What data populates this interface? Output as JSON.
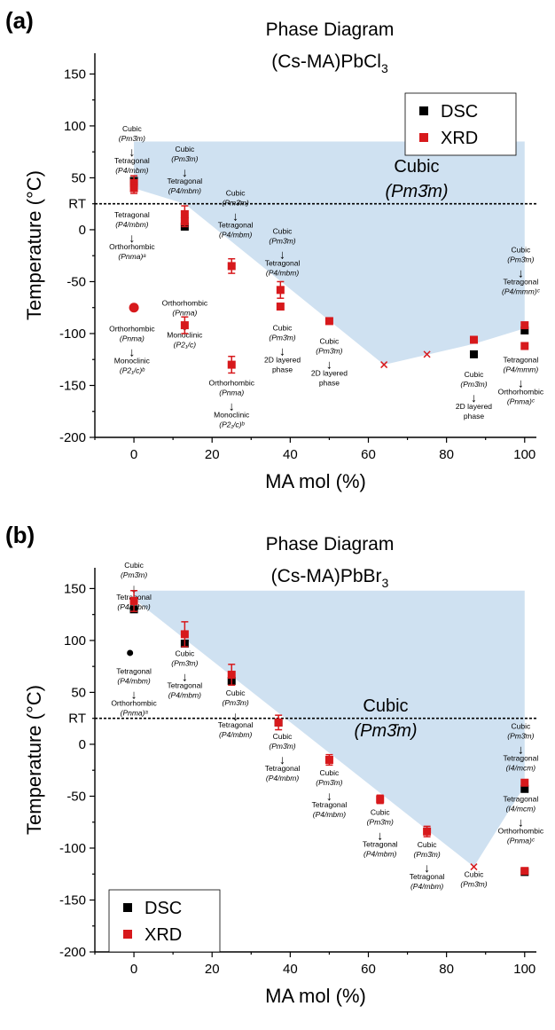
{
  "chart_data": [
    {
      "type": "scatter",
      "panel_label": "(a)",
      "title_line1": "Phase Diagram",
      "title_line2": "(Cs-MA)PbCl",
      "title_sub": "3",
      "xlabel": "MA mol (%)",
      "ylabel": "Temperature (°C)",
      "xlim": [
        -10,
        103
      ],
      "ylim": [
        -200,
        170
      ],
      "xticks": [
        0,
        20,
        40,
        60,
        80,
        100
      ],
      "yticks": [
        -200,
        -150,
        -100,
        -50,
        0,
        50,
        100,
        150
      ],
      "rt_label": "RT",
      "rt_value": 25,
      "region_label": "Cubic",
      "region_label2": "(Pm3̄m)",
      "region_color": "#cfe1f1",
      "region": [
        [
          0,
          85
        ],
        [
          100,
          85
        ],
        [
          100,
          -95
        ],
        [
          87,
          -110
        ],
        [
          64,
          -130
        ],
        [
          13,
          25
        ],
        [
          0,
          40
        ]
      ],
      "legend": [
        {
          "label": "DSC",
          "color": "#000000",
          "marker": "square"
        },
        {
          "label": "XRD",
          "color": "#d7191c",
          "marker": "square"
        }
      ],
      "legend_position": "top-right",
      "series": [
        {
          "name": "DSC",
          "color": "#000000",
          "points": [
            {
              "x": 0,
              "y": 47
            },
            {
              "x": 13,
              "y": 3
            },
            {
              "x": 87,
              "y": -120
            },
            {
              "x": 100,
              "y": -97
            }
          ]
        },
        {
          "name": "XRD",
          "color": "#d7191c",
          "points": [
            {
              "x": 0,
              "y": 45,
              "err": 7
            },
            {
              "x": 0,
              "y": 40,
              "err": 5
            },
            {
              "x": 13,
              "y": 15,
              "err": 8
            },
            {
              "x": 13,
              "y": 8,
              "err": 5
            },
            {
              "x": 13,
              "y": -92,
              "err": 8
            },
            {
              "x": 25,
              "y": -35,
              "err": 7
            },
            {
              "x": 25,
              "y": -130,
              "err": 8
            },
            {
              "x": 37.5,
              "y": -58,
              "err": 8
            },
            {
              "x": 37.5,
              "y": -74
            },
            {
              "x": 50,
              "y": -88
            },
            {
              "x": 87,
              "y": -106
            },
            {
              "x": 100,
              "y": -92
            },
            {
              "x": 100,
              "y": -112
            }
          ]
        }
      ],
      "extra_markers": [
        {
          "kind": "circle",
          "x": 0,
          "y": -75,
          "color": "#d7191c"
        },
        {
          "kind": "cross",
          "x": 64,
          "y": -130,
          "color": "#d7191c"
        },
        {
          "kind": "cross",
          "x": 75,
          "y": -120,
          "color": "#d7191c"
        }
      ],
      "annotations": [
        {
          "x": -0.5,
          "y": 95,
          "lines": [
            "Cubic",
            "(Pm3̄m)",
            "↓",
            "Tetragonal",
            "(P4/mbm)"
          ]
        },
        {
          "x": -0.5,
          "y": 12,
          "lines": [
            "Tetragonal",
            "(P4/mbm)",
            "↓",
            "Orthorhombic",
            "(Pnma)ᵃ"
          ]
        },
        {
          "x": -0.5,
          "y": -98,
          "lines": [
            "Orthorhombic",
            "(Pnma)",
            "↓",
            "Monoclinic",
            "(P2₁/c)ᵇ"
          ]
        },
        {
          "x": 13,
          "y": 75,
          "lines": [
            "Cubic",
            "(Pm3̄m)",
            "↓",
            "Tetragonal",
            "(P4/mbm)"
          ]
        },
        {
          "x": 13,
          "y": -73,
          "lines": [
            "Orthorhombic",
            "(Pnma)",
            "↓",
            "Monoclinic",
            "(P2₁/c)"
          ]
        },
        {
          "x": 26,
          "y": 33,
          "lines": [
            "Cubic",
            "(Pm3̄m)",
            "↓",
            "Tetragonal",
            "(P4/mbm)"
          ]
        },
        {
          "x": 25,
          "y": -150,
          "lines": [
            "Orthorhombic",
            "(Pnma)",
            "↓",
            "Monoclinic",
            "(P2₁/c)ᵇ"
          ]
        },
        {
          "x": 38,
          "y": -4,
          "lines": [
            "Cubic",
            "(Pm3̄m)",
            "↓",
            "Tetragonal",
            "(P4/mbm)"
          ]
        },
        {
          "x": 38,
          "y": -97,
          "lines": [
            "Cubic",
            "(Pm3̄m)",
            "↓",
            "2D layered",
            "phase"
          ]
        },
        {
          "x": 50,
          "y": -110,
          "lines": [
            "Cubic",
            "(Pm3̄m)",
            "↓",
            "2D layered",
            "phase"
          ]
        },
        {
          "x": 87,
          "y": -142,
          "lines": [
            "Cubic",
            "(Pm3̄m)",
            "↓",
            "2D layered",
            "phase"
          ]
        },
        {
          "x": 99,
          "y": -22,
          "lines": [
            "Cubic",
            "(Pm3̄m)",
            "↓",
            "Tetragonal",
            "(P4/mmm)ᶜ"
          ]
        },
        {
          "x": 99,
          "y": -128,
          "lines": [
            "Tetragonal",
            "(P4/mmm)",
            "↓",
            "Orthorhombic",
            "(Pnma)ᶜ"
          ]
        }
      ]
    },
    {
      "type": "scatter",
      "panel_label": "(b)",
      "title_line1": "Phase Diagram",
      "title_line2": "(Cs-MA)PbBr",
      "title_sub": "3",
      "xlabel": "MA mol (%)",
      "ylabel": "Temperature (°C)",
      "xlim": [
        -10,
        103
      ],
      "ylim": [
        -200,
        170
      ],
      "xticks": [
        0,
        20,
        40,
        60,
        80,
        100
      ],
      "yticks": [
        -200,
        -150,
        -100,
        -50,
        0,
        50,
        100,
        150
      ],
      "rt_label": "RT",
      "rt_value": 25,
      "region_label": "Cubic",
      "region_label2": "(Pm3̄m)",
      "region_color": "#cfe1f1",
      "region": [
        [
          0,
          148
        ],
        [
          100,
          148
        ],
        [
          100,
          -40
        ],
        [
          87,
          -118
        ],
        [
          0,
          140
        ]
      ],
      "legend": [
        {
          "label": "DSC",
          "color": "#000000",
          "marker": "square"
        },
        {
          "label": "XRD",
          "color": "#d7191c",
          "marker": "square"
        }
      ],
      "legend_position": "bottom-left",
      "series": [
        {
          "name": "DSC",
          "color": "#000000",
          "points": [
            {
              "x": 0,
              "y": 130
            },
            {
              "x": 13,
              "y": 97
            },
            {
              "x": 25,
              "y": 61
            },
            {
              "x": 37,
              "y": 21
            },
            {
              "x": 100,
              "y": -43
            },
            {
              "x": 100,
              "y": -123
            }
          ]
        },
        {
          "name": "XRD",
          "color": "#d7191c",
          "points": [
            {
              "x": 0,
              "y": 138,
              "err": 10
            },
            {
              "x": 13,
              "y": 106,
              "err": 12
            },
            {
              "x": 25,
              "y": 67,
              "err": 10
            },
            {
              "x": 37,
              "y": 21,
              "err": 7
            },
            {
              "x": 50,
              "y": -15,
              "err": 5
            },
            {
              "x": 63,
              "y": -53,
              "err": 4
            },
            {
              "x": 75,
              "y": -84,
              "err": 5
            },
            {
              "x": 100,
              "y": -37
            },
            {
              "x": 100,
              "y": -122
            }
          ]
        }
      ],
      "extra_markers": [
        {
          "kind": "circle",
          "x": -1,
          "y": 88,
          "color": "#000000"
        },
        {
          "kind": "cross",
          "x": 87,
          "y": -118,
          "color": "#d7191c"
        }
      ],
      "annotations": [
        {
          "x": 0,
          "y": 170,
          "lines": [
            "Cubic",
            "(Pm3̄m)",
            "↓",
            "Tetragonal",
            "(P4/mbm)"
          ]
        },
        {
          "x": 0,
          "y": 68,
          "lines": [
            "Tetragonal",
            "(P4/mbm)",
            "↓",
            "Orthorhombic",
            "(Pnma)ᵃ"
          ]
        },
        {
          "x": 13,
          "y": 85,
          "lines": [
            "Cubic",
            "(Pm3̄m)",
            "↓",
            "Tetragonal",
            "(P4/mbm)"
          ]
        },
        {
          "x": 26,
          "y": 47,
          "lines": [
            "Cubic",
            "(Pm3̄m)",
            "↓",
            "Tetragonal",
            "(P4/mbm)"
          ]
        },
        {
          "x": 38,
          "y": 5,
          "lines": [
            "Cubic",
            "(Pm3̄m)",
            "↓",
            "Tetragonal",
            "(P4/mbm)"
          ]
        },
        {
          "x": 50,
          "y": -30,
          "lines": [
            "Cubic",
            "(Pm3̄m)",
            "↓",
            "Tetragonal",
            "(P4/mbm)"
          ]
        },
        {
          "x": 63,
          "y": -68,
          "lines": [
            "Cubic",
            "(Pm3̄m)",
            "↓",
            "Tetragonal",
            "(P4/mbm)"
          ]
        },
        {
          "x": 75,
          "y": -99,
          "lines": [
            "Cubic",
            "(Pm3̄m)",
            "↓",
            "Tetragonal",
            "(P4/mbm)"
          ]
        },
        {
          "x": 87,
          "y": -128,
          "lines": [
            "Cubic",
            "(Pm3̄m)"
          ]
        },
        {
          "x": 99,
          "y": 15,
          "lines": [
            "Cubic",
            "(Pm3̄m)",
            "↓",
            "Tetragonal",
            "(I4/mcm)"
          ]
        },
        {
          "x": 99,
          "y": -55,
          "lines": [
            "Tetragonal",
            "(I4/mcm)",
            "↓",
            "Orthorhombic",
            "(Pnma)ᶜ"
          ]
        }
      ]
    }
  ]
}
